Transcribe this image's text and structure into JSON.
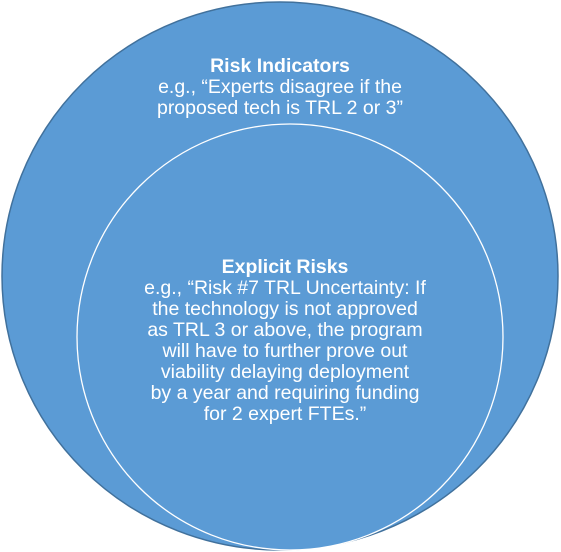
{
  "outer": {
    "title": "Risk Indicators",
    "lines": [
      "e.g., “Experts disagree if the",
      "proposed tech is TRL 2 or 3”"
    ]
  },
  "inner": {
    "title": "Explicit Risks",
    "lines": [
      "e.g., “Risk #7 TRL Uncertainty: If",
      "the technology is not approved",
      "as TRL 3 or above, the program",
      "will have to further prove out",
      "viability delaying deployment",
      "by a year and requiring funding",
      "for 2 expert FTEs.”"
    ]
  },
  "colors": {
    "fill": "#5b9bd5",
    "stroke": "#41719c",
    "inner_stroke": "#ffffff",
    "text": "#ffffff"
  }
}
